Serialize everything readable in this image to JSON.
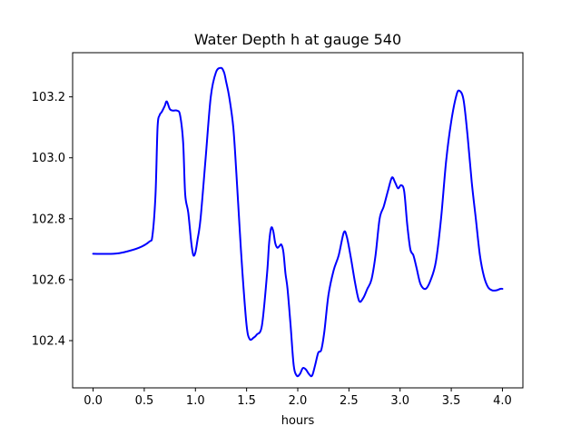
{
  "chart_data": {
    "type": "line",
    "title": "Water Depth h at gauge 540",
    "xlabel": "hours",
    "ylabel": "",
    "xlim": [
      -0.2,
      4.2
    ],
    "ylim": [
      102.245,
      103.345
    ],
    "grid": false,
    "legend": null,
    "x_ticks": [
      0.0,
      0.5,
      1.0,
      1.5,
      2.0,
      2.5,
      3.0,
      3.5,
      4.0
    ],
    "x_tick_labels": [
      "0.0",
      "0.5",
      "1.0",
      "1.5",
      "2.0",
      "2.5",
      "3.0",
      "3.5",
      "4.0"
    ],
    "y_ticks": [
      102.4,
      102.6,
      102.8,
      103.0,
      103.2
    ],
    "y_tick_labels": [
      "102.4",
      "102.6",
      "102.8",
      "103.0",
      "103.2"
    ],
    "series": [
      {
        "color": "#0000ff",
        "x": [
          0.0,
          0.2,
          0.3,
          0.45,
          0.55,
          0.58,
          0.61,
          0.63,
          0.65,
          0.67,
          0.7,
          0.72,
          0.75,
          0.78,
          0.82,
          0.85,
          0.88,
          0.9,
          0.93,
          0.96,
          0.98,
          1.0,
          1.02,
          1.05,
          1.1,
          1.15,
          1.2,
          1.25,
          1.28,
          1.3,
          1.33,
          1.37,
          1.4,
          1.43,
          1.46,
          1.5,
          1.53,
          1.57,
          1.6,
          1.65,
          1.7,
          1.72,
          1.74,
          1.76,
          1.78,
          1.8,
          1.82,
          1.84,
          1.86,
          1.88,
          1.9,
          1.93,
          1.96,
          1.99,
          2.02,
          2.05,
          2.08,
          2.11,
          2.14,
          2.17,
          2.2,
          2.23,
          2.26,
          2.3,
          2.35,
          2.4,
          2.45,
          2.48,
          2.52,
          2.56,
          2.6,
          2.64,
          2.68,
          2.72,
          2.76,
          2.8,
          2.84,
          2.88,
          2.92,
          2.95,
          2.98,
          3.01,
          3.04,
          3.07,
          3.1,
          3.13,
          3.16,
          3.2,
          3.25,
          3.3,
          3.35,
          3.4,
          3.45,
          3.5,
          3.55,
          3.58,
          3.62,
          3.66,
          3.7,
          3.74,
          3.78,
          3.82,
          3.86,
          3.9,
          3.94,
          3.98,
          4.0
        ],
        "y": [
          102.685,
          102.685,
          102.69,
          102.705,
          102.725,
          102.745,
          102.88,
          103.1,
          103.14,
          103.15,
          103.17,
          103.185,
          103.16,
          103.155,
          103.155,
          103.14,
          103.05,
          102.88,
          102.82,
          102.72,
          102.68,
          102.69,
          102.73,
          102.8,
          103.0,
          103.2,
          103.28,
          103.295,
          103.28,
          103.25,
          103.2,
          103.1,
          102.95,
          102.78,
          102.62,
          102.45,
          102.405,
          102.41,
          102.42,
          102.45,
          102.62,
          102.72,
          102.77,
          102.76,
          102.72,
          102.705,
          102.71,
          102.715,
          102.69,
          102.62,
          102.57,
          102.45,
          102.32,
          102.285,
          102.29,
          102.31,
          102.305,
          102.29,
          102.285,
          102.32,
          102.36,
          102.37,
          102.43,
          102.55,
          102.63,
          102.68,
          102.755,
          102.74,
          102.67,
          102.59,
          102.53,
          102.54,
          102.57,
          102.6,
          102.68,
          102.8,
          102.84,
          102.89,
          102.935,
          102.92,
          102.9,
          102.91,
          102.89,
          102.78,
          102.7,
          102.68,
          102.64,
          102.585,
          102.57,
          102.6,
          102.66,
          102.8,
          102.99,
          103.12,
          103.205,
          103.22,
          103.19,
          103.07,
          102.92,
          102.8,
          102.68,
          102.61,
          102.575,
          102.565,
          102.565,
          102.57,
          102.57
        ]
      }
    ]
  }
}
